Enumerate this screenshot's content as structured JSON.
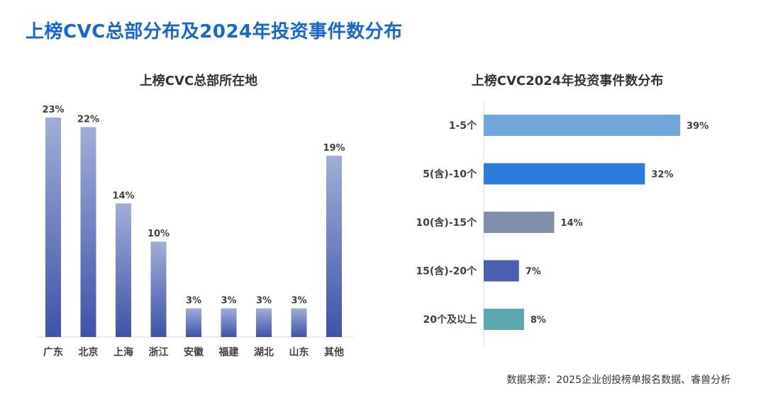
{
  "page": {
    "title": "上榜CVC总部分布及2024年投资事件数分布",
    "source": "数据来源：2025企业创投榜单报名数据、睿兽分析"
  },
  "colors": {
    "title_blue": "#1667d6",
    "bar_left_top": "#a0aed8",
    "bar_left_bottom": "#3d53a8",
    "bar_right": [
      "#6fa8dc",
      "#2a7bdb",
      "#7f8fa9",
      "#4a5fb0",
      "#5ba7ae"
    ]
  },
  "chart_data": [
    {
      "type": "bar",
      "title": "上榜CVC总部所在地",
      "categories": [
        "广东",
        "北京",
        "上海",
        "浙江",
        "安徽",
        "福建",
        "湖北",
        "山东",
        "其他"
      ],
      "values": [
        23,
        22,
        14,
        10,
        3,
        3,
        3,
        3,
        19
      ],
      "labels": [
        "23%",
        "22%",
        "14%",
        "10%",
        "3%",
        "3%",
        "3%",
        "3%",
        "19%"
      ],
      "unit": "%",
      "ylim": [
        0,
        23
      ]
    },
    {
      "type": "bar",
      "orientation": "horizontal",
      "title": "上榜CVC2024年投资事件数分布",
      "categories": [
        "1-5个",
        "5(含)-10个",
        "10(含)-15个",
        "15(含)-20个",
        "20个及以上"
      ],
      "values": [
        39,
        32,
        14,
        7,
        8
      ],
      "labels": [
        "39%",
        "32%",
        "14%",
        "7%",
        "8%"
      ],
      "unit": "%",
      "xlim": [
        0,
        39
      ]
    }
  ]
}
